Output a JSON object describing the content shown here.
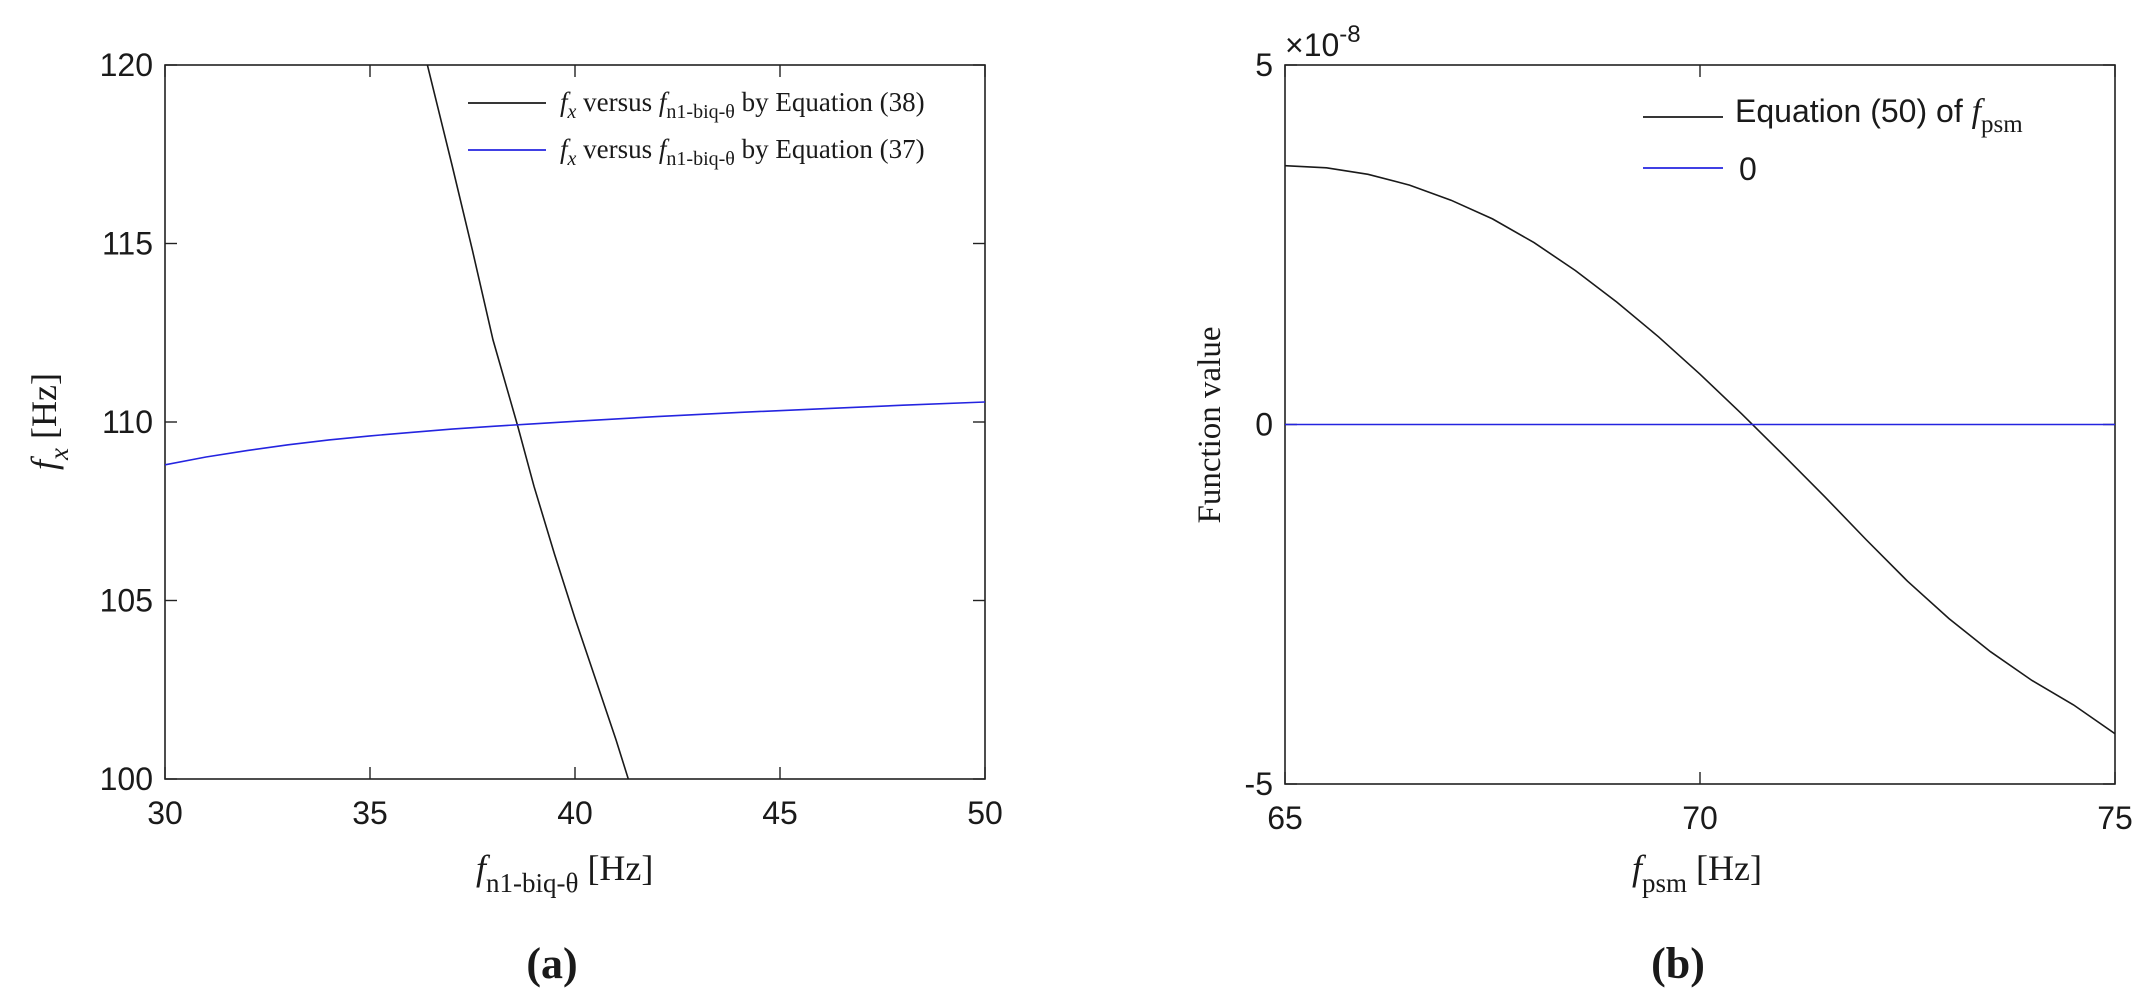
{
  "chart_data": [
    {
      "type": "line",
      "panel_label": "(a)",
      "xlabel": {
        "main": "f",
        "sub": "n1-biq-θ",
        "unit": " [Hz]"
      },
      "ylabel": {
        "main": "f",
        "sub": "x",
        "unit": " [Hz]"
      },
      "xlim": [
        30,
        50
      ],
      "ylim": [
        100,
        120
      ],
      "xticks": [
        "30",
        "35",
        "40",
        "45",
        "50"
      ],
      "yticks": [
        "100",
        "105",
        "110",
        "115",
        "120"
      ],
      "legend_position": "top-right",
      "series": [
        {
          "name": "Equation (38)",
          "legend_text": {
            "f1": "f",
            "s1": "x",
            "mid": " versus ",
            "f2": "f",
            "s2": "n1-biq-θ",
            "tail": " by Equation (38)"
          },
          "color": "#1a1a1a",
          "x": [
            36.4,
            37.0,
            37.5,
            38.0,
            38.6,
            39.0,
            39.5,
            40.0,
            40.5,
            41.0,
            41.3
          ],
          "y": [
            120.0,
            117.2,
            114.8,
            112.3,
            109.9,
            108.2,
            106.3,
            104.5,
            102.8,
            101.1,
            100.0
          ]
        },
        {
          "name": "Equation (37)",
          "legend_text": {
            "f1": "f",
            "s1": "x",
            "mid": " versus ",
            "f2": "f",
            "s2": "n1-biq-θ",
            "tail": " by Equation (37)"
          },
          "color": "#2424e0",
          "x": [
            30,
            31,
            32,
            33,
            34,
            35,
            36,
            37,
            38,
            39,
            40,
            42,
            44,
            46,
            48,
            50
          ],
          "y": [
            108.8,
            109.02,
            109.2,
            109.36,
            109.5,
            109.61,
            109.71,
            109.8,
            109.88,
            109.95,
            110.02,
            110.15,
            110.27,
            110.37,
            110.47,
            110.56
          ]
        }
      ]
    },
    {
      "type": "line",
      "panel_label": "(b)",
      "xlabel": {
        "main": "f",
        "sub": "psm",
        "unit": " [Hz]"
      },
      "ylabel": "Function value",
      "xlim": [
        65,
        75
      ],
      "ylim": [
        -5e-08,
        5e-08
      ],
      "xticks": [
        "65",
        "70",
        "75"
      ],
      "yticks": [
        "-5",
        "0",
        "5"
      ],
      "exponent_label": {
        "base": "×10",
        "exp": "-8"
      },
      "legend_position": "top-right",
      "series": [
        {
          "name": "Equation (50) of f_psm",
          "legend_text": {
            "text": "Equation (50) of ",
            "f": "f",
            "sub": "psm"
          },
          "color": "#1a1a1a",
          "x": [
            65,
            65.5,
            66,
            66.5,
            67,
            67.5,
            68,
            68.5,
            69,
            69.5,
            70,
            70.5,
            71,
            71.5,
            72,
            72.5,
            73,
            73.5,
            74,
            74.5,
            75
          ],
          "y": [
            3.6e-08,
            3.57e-08,
            3.48e-08,
            3.33e-08,
            3.12e-08,
            2.86e-08,
            2.53e-08,
            2.14e-08,
            1.7e-08,
            1.22e-08,
            7e-09,
            1.5e-09,
            -4.2e-09,
            -1e-08,
            -1.6e-08,
            -2.18e-08,
            -2.7e-08,
            -3.16e-08,
            -3.56e-08,
            -3.9e-08,
            -4.3e-08
          ]
        },
        {
          "name": "0",
          "legend_text": {
            "text": "0"
          },
          "color": "#2424e0",
          "x": [
            65,
            75
          ],
          "y": [
            0,
            0
          ]
        }
      ]
    }
  ]
}
